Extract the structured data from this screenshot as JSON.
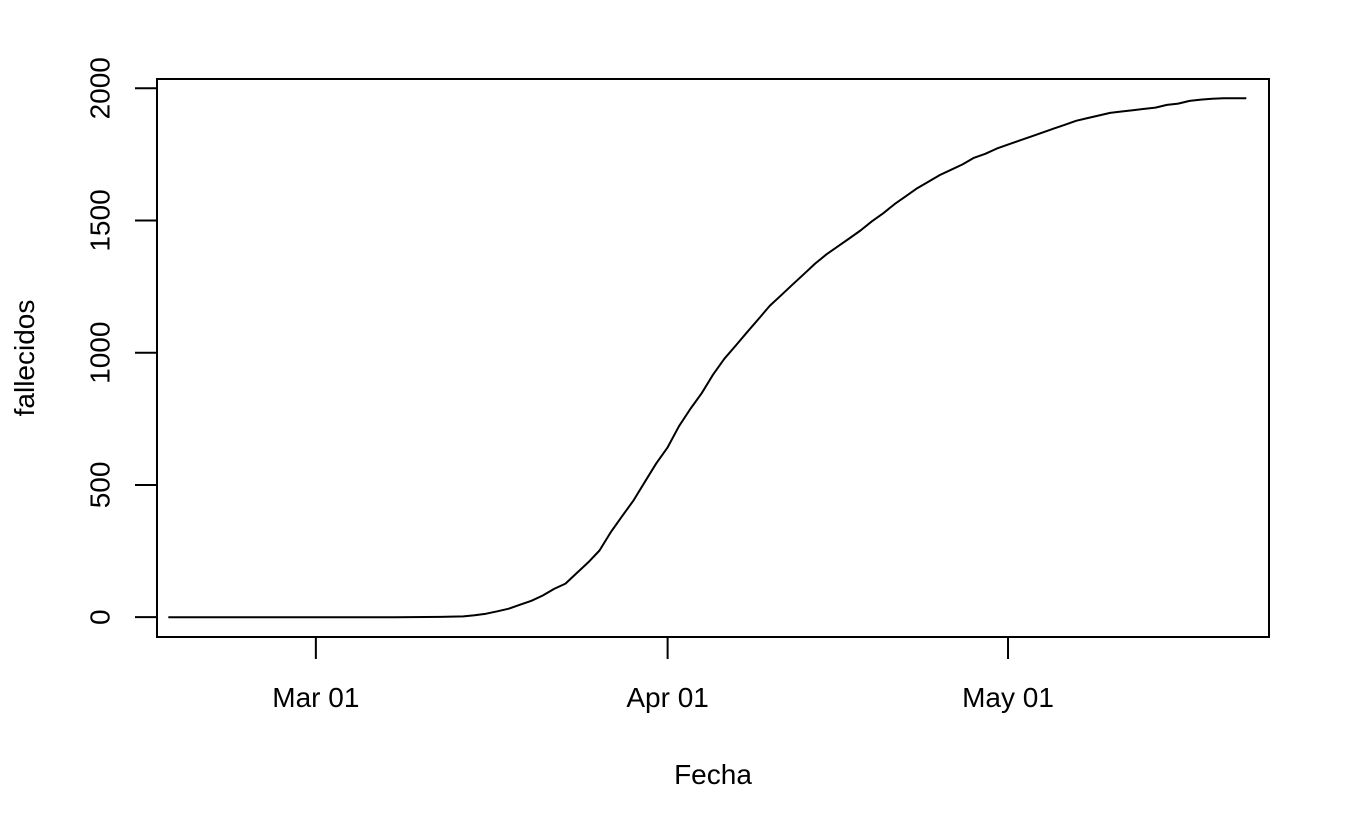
{
  "chart_data": {
    "type": "line",
    "title": "",
    "xlabel": "Fecha",
    "ylabel": "fallecidos",
    "x_ticks": [
      {
        "label": "Mar 01",
        "date": "2020-03-01"
      },
      {
        "label": "Apr 01",
        "date": "2020-04-01"
      },
      {
        "label": "May 01",
        "date": "2020-05-01"
      }
    ],
    "y_ticks": [
      0,
      500,
      1000,
      1500,
      2000
    ],
    "xlim": [
      "2020-02-16",
      "2020-05-24"
    ],
    "ylim": [
      -75,
      2035
    ],
    "grid": false,
    "legend": "none",
    "line_color": "#000000",
    "series": [
      {
        "points": [
          [
            "2020-02-17",
            0
          ],
          [
            "2020-03-08",
            0
          ],
          [
            "2020-03-12",
            1
          ],
          [
            "2020-03-14",
            3
          ],
          [
            "2020-03-15",
            7
          ],
          [
            "2020-03-16",
            13
          ],
          [
            "2020-03-17",
            22
          ],
          [
            "2020-03-18",
            32
          ],
          [
            "2020-03-19",
            47
          ],
          [
            "2020-03-20",
            62
          ],
          [
            "2020-03-21",
            82
          ],
          [
            "2020-03-22",
            107
          ],
          [
            "2020-03-23",
            127
          ],
          [
            "2020-03-24",
            167
          ],
          [
            "2020-03-25",
            207
          ],
          [
            "2020-03-26",
            252
          ],
          [
            "2020-03-27",
            322
          ],
          [
            "2020-03-28",
            382
          ],
          [
            "2020-03-29",
            442
          ],
          [
            "2020-03-30",
            512
          ],
          [
            "2020-03-31",
            582
          ],
          [
            "2020-04-01",
            642
          ],
          [
            "2020-04-02",
            722
          ],
          [
            "2020-04-03",
            787
          ],
          [
            "2020-04-04",
            847
          ],
          [
            "2020-04-05",
            917
          ],
          [
            "2020-04-06",
            977
          ],
          [
            "2020-04-07",
            1027
          ],
          [
            "2020-04-08",
            1077
          ],
          [
            "2020-04-09",
            1127
          ],
          [
            "2020-04-10",
            1177
          ],
          [
            "2020-04-11",
            1217
          ],
          [
            "2020-04-12",
            1257
          ],
          [
            "2020-04-13",
            1297
          ],
          [
            "2020-04-14",
            1337
          ],
          [
            "2020-04-15",
            1372
          ],
          [
            "2020-04-16",
            1402
          ],
          [
            "2020-04-17",
            1432
          ],
          [
            "2020-04-18",
            1462
          ],
          [
            "2020-04-19",
            1497
          ],
          [
            "2020-04-20",
            1527
          ],
          [
            "2020-04-21",
            1562
          ],
          [
            "2020-04-22",
            1592
          ],
          [
            "2020-04-23",
            1622
          ],
          [
            "2020-04-24",
            1647
          ],
          [
            "2020-04-25",
            1672
          ],
          [
            "2020-04-26",
            1692
          ],
          [
            "2020-04-27",
            1712
          ],
          [
            "2020-04-28",
            1737
          ],
          [
            "2020-04-29",
            1752
          ],
          [
            "2020-04-30",
            1772
          ],
          [
            "2020-05-01",
            1787
          ],
          [
            "2020-05-02",
            1802
          ],
          [
            "2020-05-03",
            1817
          ],
          [
            "2020-05-04",
            1832
          ],
          [
            "2020-05-05",
            1847
          ],
          [
            "2020-05-06",
            1862
          ],
          [
            "2020-05-07",
            1877
          ],
          [
            "2020-05-08",
            1887
          ],
          [
            "2020-05-09",
            1897
          ],
          [
            "2020-05-10",
            1907
          ],
          [
            "2020-05-11",
            1912
          ],
          [
            "2020-05-12",
            1917
          ],
          [
            "2020-05-13",
            1922
          ],
          [
            "2020-05-14",
            1927
          ],
          [
            "2020-05-15",
            1937
          ],
          [
            "2020-05-16",
            1942
          ],
          [
            "2020-05-17",
            1952
          ],
          [
            "2020-05-18",
            1957
          ],
          [
            "2020-05-19",
            1960
          ],
          [
            "2020-05-20",
            1962
          ],
          [
            "2020-05-21",
            1962
          ],
          [
            "2020-05-22",
            1962
          ]
        ]
      }
    ]
  }
}
